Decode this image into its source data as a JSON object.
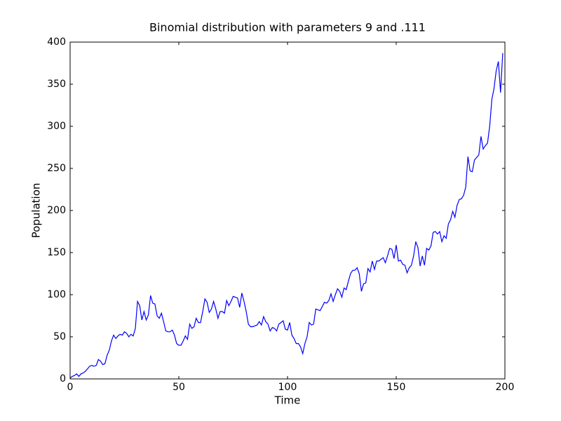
{
  "chart_data": {
    "type": "line",
    "title": "Binomial distribution with parameters 9 and .111",
    "xlabel": "Time",
    "ylabel": "Population",
    "x": [
      0,
      1,
      2,
      3,
      4,
      5,
      6,
      7,
      8,
      9,
      10,
      11,
      12,
      13,
      14,
      15,
      16,
      17,
      18,
      19,
      20,
      21,
      22,
      23,
      24,
      25,
      26,
      27,
      28,
      29,
      30,
      31,
      32,
      33,
      34,
      35,
      36,
      37,
      38,
      39,
      40,
      41,
      42,
      43,
      44,
      45,
      46,
      47,
      48,
      49,
      50,
      51,
      52,
      53,
      54,
      55,
      56,
      57,
      58,
      59,
      60,
      61,
      62,
      63,
      64,
      65,
      66,
      67,
      68,
      69,
      70,
      71,
      72,
      73,
      74,
      75,
      76,
      77,
      78,
      79,
      80,
      81,
      82,
      83,
      84,
      85,
      86,
      87,
      88,
      89,
      90,
      91,
      92,
      93,
      94,
      95,
      96,
      97,
      98,
      99,
      100,
      101,
      102,
      103,
      104,
      105,
      106,
      107,
      108,
      109,
      110,
      111,
      112,
      113,
      114,
      115,
      116,
      117,
      118,
      119,
      120,
      121,
      122,
      123,
      124,
      125,
      126,
      127,
      128,
      129,
      130,
      131,
      132,
      133,
      134,
      135,
      136,
      137,
      138,
      139,
      140,
      141,
      142,
      143,
      144,
      145,
      146,
      147,
      148,
      149,
      150,
      151,
      152,
      153,
      154,
      155,
      156,
      157,
      158,
      159,
      160,
      161,
      162,
      163,
      164,
      165,
      166,
      167,
      168,
      169,
      170,
      171,
      172,
      173,
      174,
      175,
      176,
      177,
      178,
      179,
      180,
      181,
      182,
      183,
      184,
      185,
      186,
      187,
      188,
      189,
      190,
      191,
      192,
      193,
      194,
      195,
      196,
      197,
      198,
      199
    ],
    "series": [
      {
        "name": "Population",
        "color": "#0000ff",
        "values": [
          1,
          3,
          4,
          6,
          3,
          6,
          7,
          9,
          12,
          15,
          16,
          15,
          16,
          23,
          21,
          17,
          18,
          28,
          34,
          45,
          52,
          48,
          51,
          53,
          52,
          56,
          54,
          50,
          53,
          51,
          60,
          92,
          87,
          70,
          80,
          70,
          76,
          99,
          90,
          89,
          75,
          72,
          78,
          68,
          57,
          56,
          56,
          58,
          52,
          42,
          40,
          40,
          45,
          51,
          47,
          65,
          60,
          62,
          72,
          67,
          67,
          80,
          95,
          91,
          79,
          83,
          92,
          83,
          72,
          80,
          80,
          78,
          93,
          87,
          92,
          98,
          97,
          96,
          85,
          102,
          92,
          80,
          65,
          62,
          62,
          63,
          64,
          68,
          64,
          74,
          68,
          65,
          57,
          61,
          60,
          57,
          65,
          67,
          69,
          59,
          58,
          67,
          52,
          48,
          42,
          42,
          38,
          30,
          42,
          50,
          67,
          64,
          65,
          83,
          82,
          81,
          86,
          91,
          90,
          93,
          101,
          92,
          100,
          107,
          104,
          97,
          108,
          106,
          116,
          125,
          129,
          129,
          132,
          125,
          104,
          113,
          114,
          131,
          127,
          140,
          130,
          140,
          140,
          142,
          144,
          138,
          146,
          155,
          154,
          143,
          159,
          140,
          141,
          136,
          135,
          126,
          132,
          135,
          146,
          163,
          156,
          134,
          146,
          135,
          155,
          153,
          158,
          174,
          175,
          172,
          175,
          163,
          170,
          167,
          184,
          189,
          199,
          192,
          206,
          213,
          214,
          218,
          228,
          264,
          247,
          246,
          260,
          263,
          266,
          288,
          273,
          277,
          280,
          300,
          332,
          345,
          366,
          377,
          340,
          387
        ]
      }
    ],
    "xlim": [
      0,
      200
    ],
    "ylim": [
      0,
      400
    ],
    "xticks": [
      0,
      50,
      100,
      150,
      200
    ],
    "yticks": [
      0,
      50,
      100,
      150,
      200,
      250,
      300,
      350,
      400
    ],
    "grid": false
  }
}
